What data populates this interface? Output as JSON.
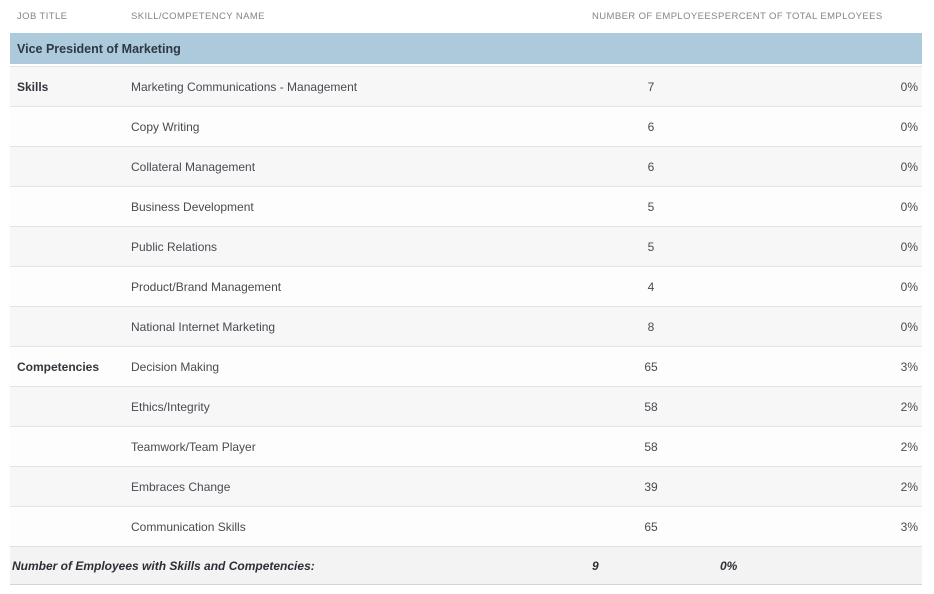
{
  "report": {
    "columns": {
      "job_title": "JOB TITLE",
      "skill_name": "SKILL/COMPETENCY NAME",
      "num_employees": "NUMBER OF EMPLOYEES",
      "pct_employees": "PERCENT OF TOTAL EMPLOYEES"
    },
    "group_header": "Vice President of Marketing",
    "rows": [
      {
        "section": "Skills",
        "name": "Marketing Communications - Management",
        "employees": "7",
        "percent": "0%"
      },
      {
        "section": "",
        "name": "Copy Writing",
        "employees": "6",
        "percent": "0%"
      },
      {
        "section": "",
        "name": "Collateral Management",
        "employees": "6",
        "percent": "0%"
      },
      {
        "section": "",
        "name": "Business Development",
        "employees": "5",
        "percent": "0%"
      },
      {
        "section": "",
        "name": "Public Relations",
        "employees": "5",
        "percent": "0%"
      },
      {
        "section": "",
        "name": "Product/Brand Management",
        "employees": "4",
        "percent": "0%"
      },
      {
        "section": "",
        "name": "National Internet Marketing",
        "employees": "8",
        "percent": "0%"
      },
      {
        "section": "Competencies",
        "name": "Decision Making",
        "employees": "65",
        "percent": "3%"
      },
      {
        "section": "",
        "name": "Ethics/Integrity",
        "employees": "58",
        "percent": "2%"
      },
      {
        "section": "",
        "name": "Teamwork/Team Player",
        "employees": "58",
        "percent": "2%"
      },
      {
        "section": "",
        "name": "Embraces Change",
        "employees": "39",
        "percent": "2%"
      },
      {
        "section": "",
        "name": "Communication Skills",
        "employees": "65",
        "percent": "3%"
      }
    ],
    "footer": {
      "label": "Number of Employees with Skills and Competencies:",
      "employees": "9",
      "percent": "0%"
    },
    "colors": {
      "group_band_bg": "#adc9dc",
      "group_band_text": "#2c3842",
      "alt_row_bg": "#f7f7f8",
      "footer_bg": "#f3f3f4",
      "row_border": "#e4e4e6",
      "column_header_text": "#84848c",
      "body_text": "#4a4a52"
    }
  }
}
